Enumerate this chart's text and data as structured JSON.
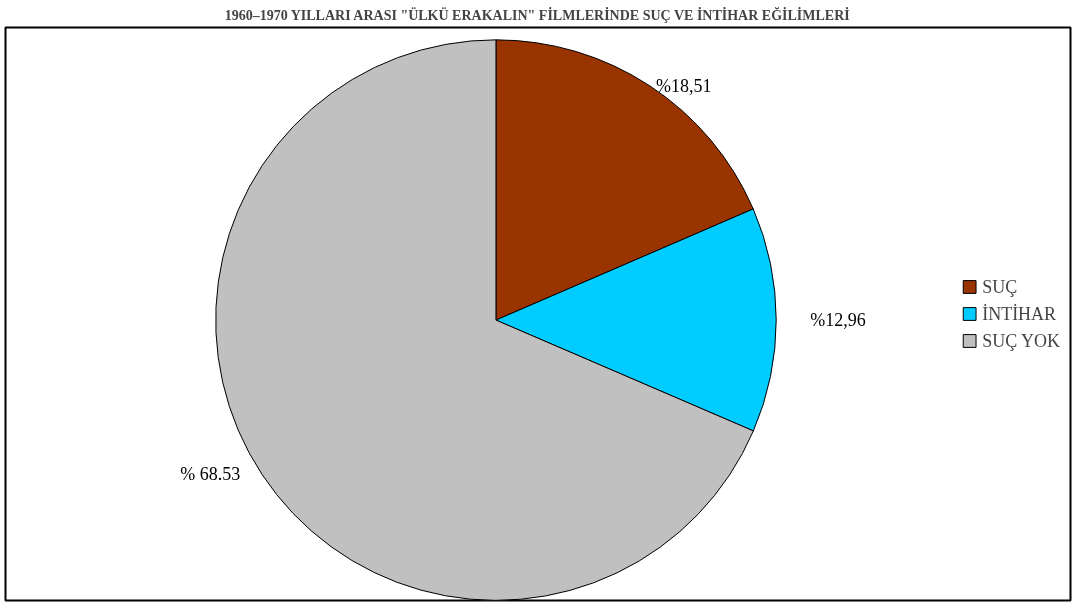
{
  "chart_data": {
    "type": "pie",
    "title": "1960–1970 YILLARI ARASI \"ÜLKÜ ERAKALIN\" FİLMLERİNDE SUÇ VE İNTİHAR EĞİLİMLERİ",
    "categories": [
      "SUÇ",
      "İNTİHAR",
      "SUÇ YOK"
    ],
    "values": [
      18.51,
      12.96,
      68.53
    ],
    "colors": [
      "#993300",
      "#00ccff",
      "#c0c0c0"
    ],
    "value_labels": [
      "%18,51",
      "%12,96",
      "% 68.53"
    ],
    "legend": "right"
  }
}
